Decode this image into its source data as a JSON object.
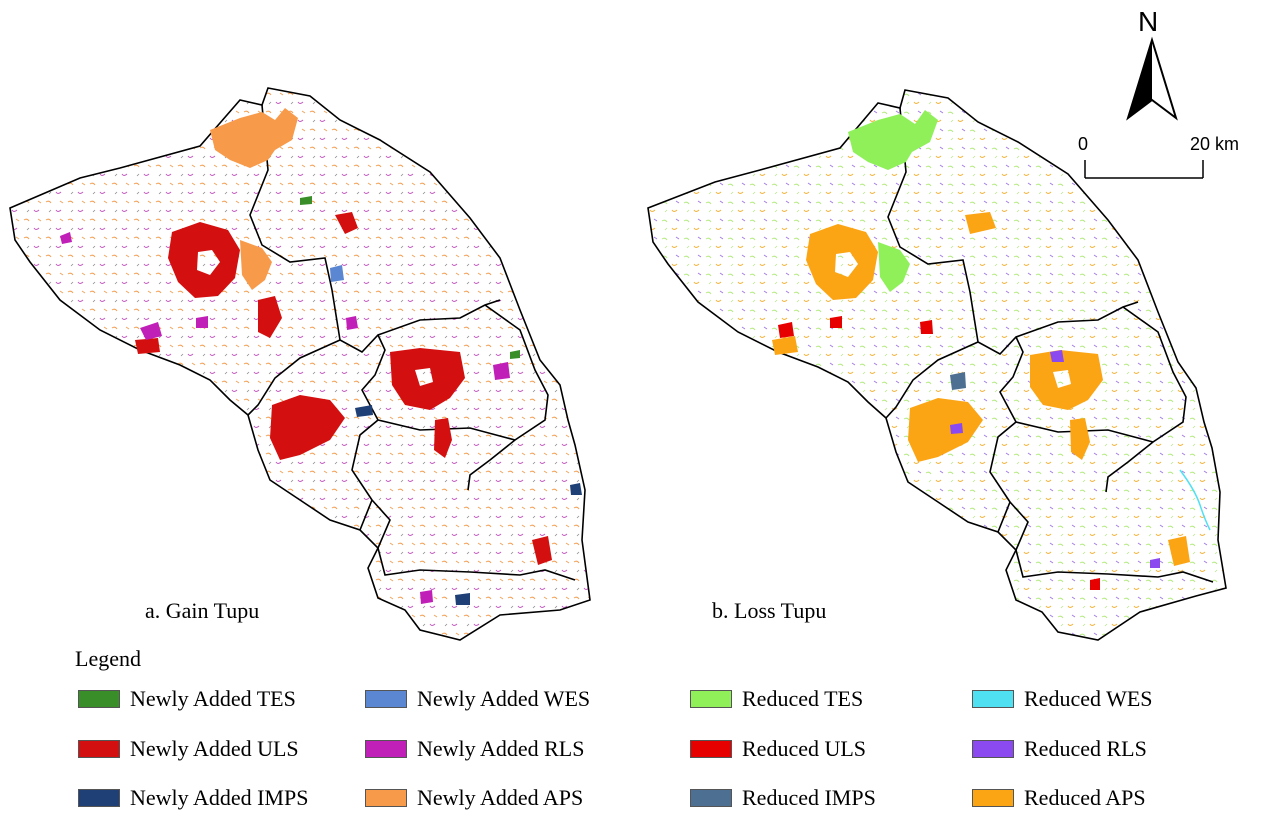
{
  "panels": {
    "a_label": "a. Gain Tupu",
    "b_label": "b. Loss Tupu"
  },
  "north_label": "N",
  "scale": {
    "zero": "0",
    "end": "20 km"
  },
  "legend": {
    "title": "Legend",
    "items": [
      {
        "label": "Newly Added TES",
        "color": "#3a8e2a"
      },
      {
        "label": "Newly Added WES",
        "color": "#5b86d1"
      },
      {
        "label": "Reduced TES",
        "color": "#8ff05a"
      },
      {
        "label": "Reduced WES",
        "color": "#4fe0f2"
      },
      {
        "label": "Newly Added ULS",
        "color": "#d40f0f"
      },
      {
        "label": "Newly Added RLS",
        "color": "#c01fb8"
      },
      {
        "label": "Reduced ULS",
        "color": "#e60000"
      },
      {
        "label": "Reduced RLS",
        "color": "#8b49f0"
      },
      {
        "label": "Newly Added IMPS",
        "color": "#1f3f77"
      },
      {
        "label": "Newly Added APS",
        "color": "#f79a4a"
      },
      {
        "label": "Reduced IMPS",
        "color": "#4d6f91"
      },
      {
        "label": "Reduced APS",
        "color": "#fba514"
      }
    ]
  }
}
